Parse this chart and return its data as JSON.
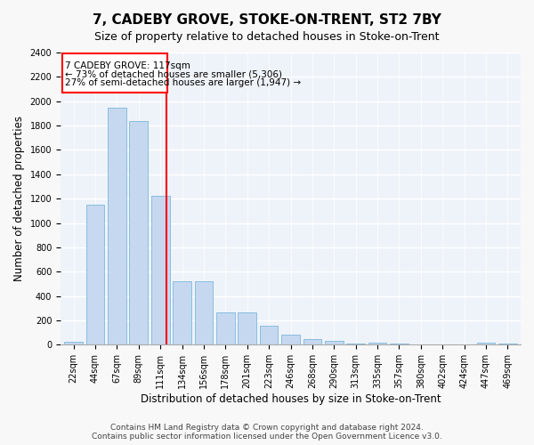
{
  "title1": "7, CADEBY GROVE, STOKE-ON-TRENT, ST2 7BY",
  "title2": "Size of property relative to detached houses in Stoke-on-Trent",
  "xlabel": "Distribution of detached houses by size in Stoke-on-Trent",
  "ylabel": "Number of detached properties",
  "categories": [
    "22sqm",
    "44sqm",
    "67sqm",
    "89sqm",
    "111sqm",
    "134sqm",
    "156sqm",
    "178sqm",
    "201sqm",
    "223sqm",
    "246sqm",
    "268sqm",
    "290sqm",
    "313sqm",
    "335sqm",
    "357sqm",
    "380sqm",
    "402sqm",
    "424sqm",
    "447sqm",
    "469sqm"
  ],
  "values": [
    25,
    1150,
    1950,
    1840,
    1220,
    520,
    520,
    265,
    265,
    155,
    80,
    50,
    35,
    10,
    15,
    10,
    5,
    5,
    5,
    15,
    10
  ],
  "bar_color": "#c5d8f0",
  "bar_edge_color": "#6aaed6",
  "ylim": [
    0,
    2400
  ],
  "yticks": [
    0,
    200,
    400,
    600,
    800,
    1000,
    1200,
    1400,
    1600,
    1800,
    2000,
    2200,
    2400
  ],
  "red_line_index": 4,
  "red_line_label": "7 CADEBY GROVE: 117sqm",
  "annotation_line1": "← 73% of detached houses are smaller (5,306)",
  "annotation_line2": "27% of semi-detached houses are larger (1,947) →",
  "footer1": "Contains HM Land Registry data © Crown copyright and database right 2024.",
  "footer2": "Contains public sector information licensed under the Open Government Licence v3.0.",
  "background_color": "#eef3f9",
  "grid_color": "#ffffff",
  "title1_fontsize": 11,
  "title2_fontsize": 9,
  "xlabel_fontsize": 8.5,
  "ylabel_fontsize": 8.5,
  "tick_fontsize": 7,
  "annotation_fontsize": 7.5,
  "footer_fontsize": 6.5
}
